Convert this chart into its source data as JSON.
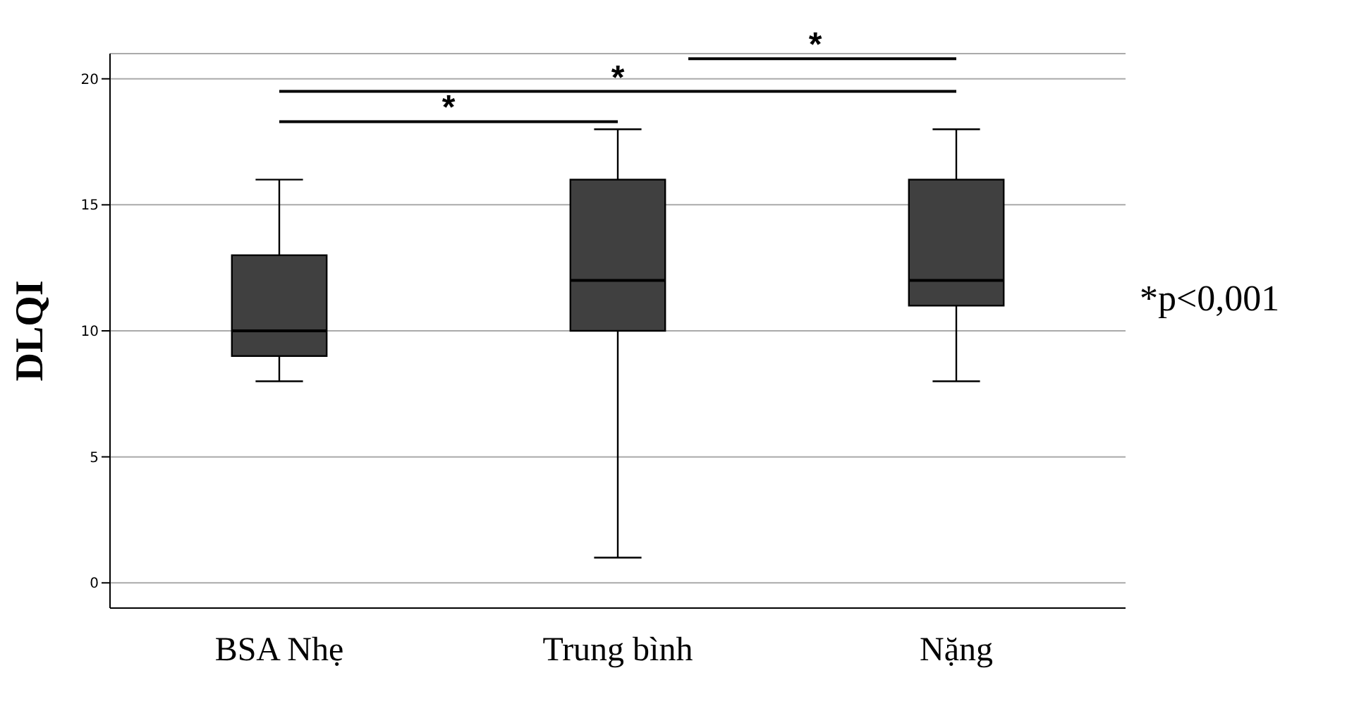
{
  "chart_data": {
    "type": "box",
    "ylabel": "DLQI",
    "categories": [
      "BSA Nhẹ",
      "Trung bình",
      "Nặng"
    ],
    "boxes": [
      {
        "low": 8,
        "q1": 9,
        "median": 10,
        "q3": 13,
        "high": 16
      },
      {
        "low": 1,
        "q1": 10,
        "median": 12,
        "q3": 16,
        "high": 18
      },
      {
        "low": 8,
        "q1": 11,
        "median": 12,
        "q3": 16,
        "high": 18
      }
    ],
    "color": "#404040",
    "ylim": [
      -1,
      21
    ],
    "yticks": [
      0,
      5,
      10,
      15,
      20
    ],
    "grid": "y",
    "annotations": [
      "*",
      "*",
      "*",
      "*p<0,001"
    ]
  }
}
